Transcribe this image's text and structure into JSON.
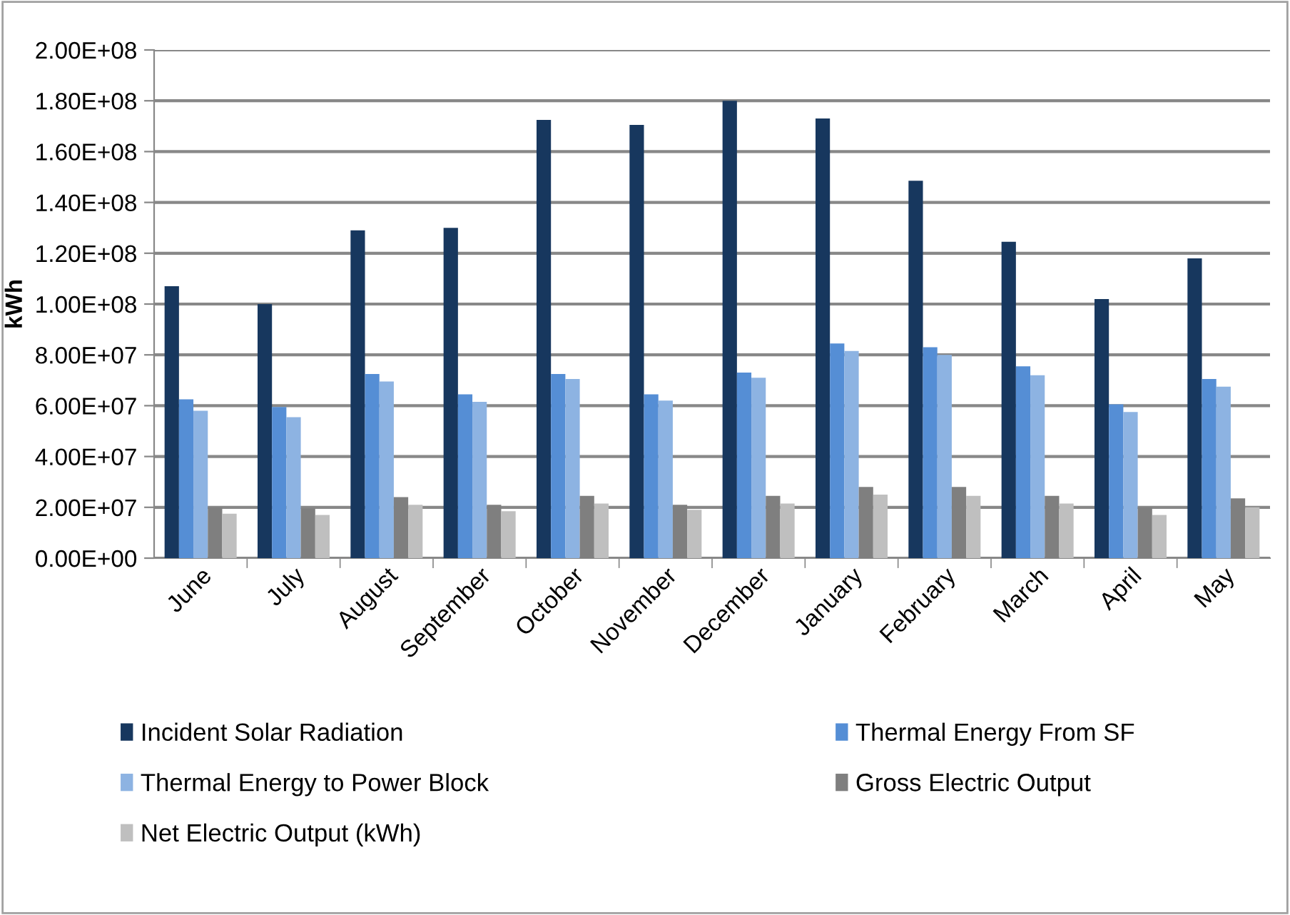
{
  "chart_data": {
    "type": "bar",
    "ylabel": "kWh",
    "categories": [
      "June",
      "July",
      "August",
      "September",
      "October",
      "November",
      "December",
      "January",
      "February",
      "March",
      "April",
      "May"
    ],
    "series": [
      {
        "name": "Incident Solar Radiation",
        "color": "#17375e",
        "values": [
          107000000,
          100000000,
          129000000,
          130000000,
          172500000,
          170500000,
          180000000,
          173000000,
          148500000,
          124500000,
          102000000,
          118000000
        ]
      },
      {
        "name": "Thermal Energy From SF",
        "color": "#558ed5",
        "values": [
          62500000,
          59500000,
          72500000,
          64500000,
          72500000,
          64500000,
          73000000,
          84500000,
          83000000,
          75500000,
          60500000,
          70500000
        ]
      },
      {
        "name": "Thermal Energy to Power Block",
        "color": "#8db3e2",
        "values": [
          58000000,
          55500000,
          69500000,
          61500000,
          70500000,
          62000000,
          71000000,
          81500000,
          80000000,
          72000000,
          57500000,
          67500000
        ]
      },
      {
        "name": "Gross Electric Output",
        "color": "#7f7f7f",
        "values": [
          20000000,
          19500000,
          24000000,
          21000000,
          24500000,
          21000000,
          24500000,
          28000000,
          28000000,
          24500000,
          20000000,
          23500000
        ]
      },
      {
        "name": "Net Electric Output (kWh)",
        "color": "#bfbfbf",
        "values": [
          17500000,
          17000000,
          21000000,
          18500000,
          21500000,
          19000000,
          21500000,
          25000000,
          24500000,
          21500000,
          17000000,
          20000000
        ]
      }
    ],
    "ylim": [
      0,
      200000000
    ],
    "yticks": [
      {
        "value": 0,
        "label": "0.00E+00"
      },
      {
        "value": 20000000,
        "label": "2.00E+07"
      },
      {
        "value": 40000000,
        "label": "4.00E+07"
      },
      {
        "value": 60000000,
        "label": "6.00E+07"
      },
      {
        "value": 80000000,
        "label": "8.00E+07"
      },
      {
        "value": 100000000,
        "label": "1.00E+08"
      },
      {
        "value": 120000000,
        "label": "1.20E+08"
      },
      {
        "value": 140000000,
        "label": "1.40E+08"
      },
      {
        "value": 160000000,
        "label": "1.60E+08"
      },
      {
        "value": 180000000,
        "label": "1.80E+08"
      },
      {
        "value": 200000000,
        "label": "2.00E+08"
      }
    ],
    "grid": "y",
    "legend": "bottom"
  }
}
